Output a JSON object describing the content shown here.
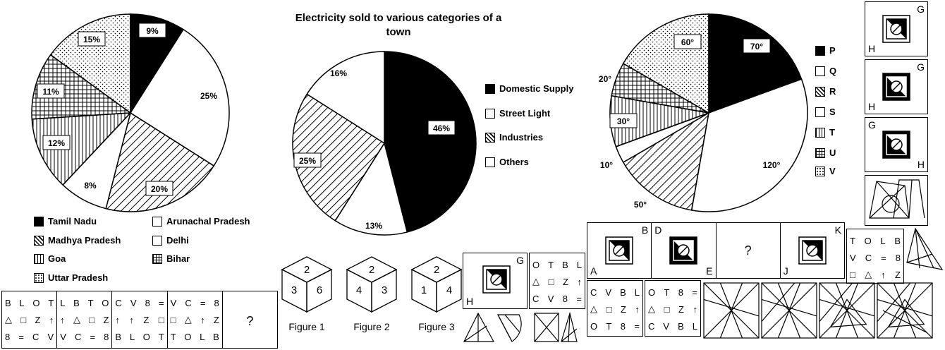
{
  "pies": [
    {
      "labels": [
        "9%",
        "25%",
        "20%",
        "8%",
        "12%",
        "11%",
        "15%"
      ],
      "legend": [
        "Tamil Nadu",
        "Arunachal Pradesh",
        "Madhya Pradesh",
        "Delhi",
        "Goa",
        "Bihar",
        "Uttar Pradesh"
      ]
    },
    {
      "title": "Electricity sold to various categories of a town",
      "labels": [
        "46%",
        "13%",
        "25%",
        "16%"
      ],
      "legend": [
        "Domestic Supply",
        "Street Light",
        "Industries",
        "Others"
      ]
    },
    {
      "labels": [
        "70°",
        "120°",
        "50°",
        "10°",
        "30°",
        "20°",
        "60°"
      ],
      "legend": [
        "P",
        "Q",
        "R",
        "S",
        "T",
        "U",
        "V"
      ]
    }
  ],
  "grid_series": [
    {
      "rows": [
        [
          "B",
          "L",
          "O",
          "T"
        ],
        [
          "△",
          "□",
          "Z",
          "↑"
        ],
        [
          "8",
          "=",
          "C",
          "V"
        ]
      ]
    },
    {
      "rows": [
        [
          "L",
          "B",
          "T",
          "O"
        ],
        [
          "↑",
          "△",
          "□",
          "Z"
        ],
        [
          "V",
          "C",
          "=",
          "8"
        ]
      ]
    },
    {
      "rows": [
        [
          "C",
          "V",
          "8",
          "="
        ],
        [
          "↑",
          "↑",
          "Z",
          "□"
        ],
        [
          "B",
          "L",
          "O",
          "T"
        ]
      ]
    },
    {
      "rows": [
        [
          "V",
          "C",
          "=",
          "8"
        ],
        [
          "□",
          "△",
          "↑",
          "Z"
        ],
        [
          "T",
          "O",
          "L",
          "B"
        ]
      ]
    },
    {
      "rows": [
        [
          "?"
        ]
      ]
    }
  ],
  "dice": {
    "faces": [
      [
        "2",
        "3",
        "6"
      ],
      [
        "2",
        "4",
        "3"
      ],
      [
        "2",
        "1",
        "4"
      ]
    ],
    "captions": [
      "Figure 1",
      "Figure 2",
      "Figure 3"
    ]
  },
  "question_grid": {
    "rows": [
      [
        "O",
        "T",
        "B",
        "L"
      ],
      [
        "△",
        "□",
        "Z",
        "↑"
      ],
      [
        "C",
        "V",
        "8",
        "="
      ]
    ]
  },
  "options_grids": [
    {
      "rows": [
        [
          "C",
          "V",
          "B",
          "L"
        ],
        [
          "△",
          "□",
          "Z",
          "↑"
        ],
        [
          "O",
          "T",
          "8",
          "="
        ]
      ]
    },
    {
      "rows": [
        [
          "O",
          "T",
          "8",
          "="
        ],
        [
          "△",
          "□",
          "Z",
          "↑"
        ],
        [
          "C",
          "V",
          "B",
          "L"
        ]
      ]
    }
  ],
  "right_grid": {
    "rows": [
      [
        "T",
        "O",
        "L",
        "B"
      ],
      [
        "V",
        "C",
        "=",
        "8"
      ],
      [
        "□",
        "△",
        "↑",
        "Z"
      ]
    ]
  },
  "mirror_labels": {
    "q": [
      "H",
      "G"
    ],
    "seq": [
      [
        "B",
        "A"
      ],
      [
        "D",
        "E"
      ],
      [
        "?"
      ],
      [
        "K",
        "J"
      ]
    ],
    "side": [
      [
        "G",
        "H"
      ],
      [
        "G",
        "H"
      ],
      [
        "G",
        "H"
      ]
    ]
  }
}
